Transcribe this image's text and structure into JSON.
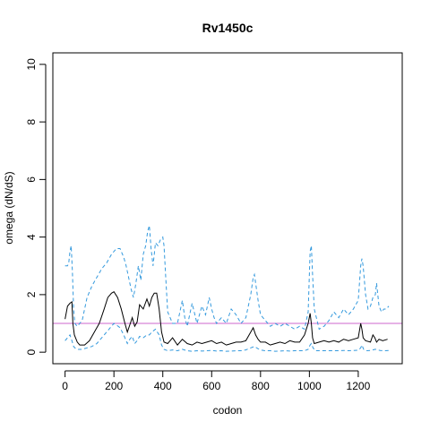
{
  "chart_data": {
    "type": "line",
    "title": "Rv1450c",
    "xlabel": "codon",
    "ylabel": "omega (dN/dS)",
    "xlim": [
      -50,
      1380
    ],
    "ylim": [
      -0.4,
      10.4
    ],
    "xticks": [
      0,
      200,
      400,
      600,
      800,
      1000,
      1200
    ],
    "yticks": [
      0,
      2,
      4,
      6,
      8,
      10
    ],
    "grid": false,
    "reference_line": {
      "y": 1,
      "color": "#cc66cc"
    },
    "series": [
      {
        "style": "solid",
        "color": "#000000",
        "x": [
          0,
          10,
          20,
          28,
          32,
          38,
          50,
          60,
          80,
          100,
          120,
          140,
          160,
          175,
          190,
          200,
          215,
          230,
          245,
          255,
          265,
          275,
          285,
          295,
          305,
          320,
          335,
          345,
          355,
          365,
          375,
          385,
          395,
          405,
          420,
          440,
          460,
          480,
          500,
          520,
          540,
          560,
          580,
          600,
          620,
          640,
          660,
          680,
          700,
          720,
          740,
          760,
          770,
          780,
          790,
          800,
          820,
          840,
          860,
          880,
          900,
          920,
          940,
          960,
          980,
          995,
          1003,
          1008,
          1013,
          1020,
          1040,
          1060,
          1080,
          1100,
          1120,
          1140,
          1160,
          1180,
          1200,
          1210,
          1215,
          1220,
          1230,
          1250,
          1260,
          1268,
          1275,
          1285,
          1300,
          1320
        ],
        "values": [
          1.15,
          1.6,
          1.7,
          1.75,
          1.0,
          0.6,
          0.35,
          0.25,
          0.25,
          0.4,
          0.7,
          1.0,
          1.5,
          1.9,
          2.05,
          2.1,
          1.9,
          1.5,
          1.0,
          0.7,
          0.95,
          1.2,
          0.9,
          1.05,
          1.65,
          1.5,
          1.85,
          1.6,
          1.9,
          2.05,
          2.05,
          1.5,
          0.7,
          0.35,
          0.3,
          0.5,
          0.25,
          0.45,
          0.3,
          0.25,
          0.35,
          0.3,
          0.35,
          0.4,
          0.3,
          0.35,
          0.25,
          0.3,
          0.35,
          0.35,
          0.4,
          0.7,
          0.85,
          0.6,
          0.45,
          0.35,
          0.35,
          0.25,
          0.3,
          0.35,
          0.3,
          0.4,
          0.35,
          0.35,
          0.6,
          1.0,
          1.35,
          1.0,
          0.5,
          0.3,
          0.35,
          0.4,
          0.35,
          0.4,
          0.35,
          0.45,
          0.4,
          0.45,
          0.5,
          1.0,
          0.8,
          0.5,
          0.4,
          0.35,
          0.6,
          0.5,
          0.35,
          0.45,
          0.4,
          0.45
        ]
      },
      {
        "style": "dashed",
        "color": "#3399dd",
        "x": [
          0,
          10,
          15,
          20,
          25,
          30,
          35,
          40,
          50,
          70,
          90,
          110,
          130,
          150,
          170,
          190,
          210,
          225,
          240,
          250,
          260,
          270,
          280,
          290,
          300,
          310,
          320,
          330,
          338,
          345,
          352,
          360,
          370,
          380,
          390,
          400,
          405,
          412,
          420,
          440,
          460,
          480,
          490,
          500,
          520,
          540,
          560,
          575,
          590,
          600,
          610,
          620,
          640,
          660,
          680,
          700,
          720,
          740,
          760,
          770,
          775,
          780,
          790,
          800,
          820,
          840,
          860,
          880,
          900,
          920,
          940,
          960,
          980,
          995,
          1003,
          1008,
          1013,
          1020,
          1040,
          1060,
          1080,
          1100,
          1120,
          1140,
          1160,
          1180,
          1200,
          1210,
          1215,
          1220,
          1230,
          1240,
          1250,
          1260,
          1270,
          1275,
          1285,
          1295,
          1305,
          1315,
          1325
        ],
        "values": [
          3.0,
          3.0,
          3.1,
          3.5,
          3.7,
          2.8,
          1.5,
          1.0,
          0.9,
          1.1,
          1.9,
          2.3,
          2.6,
          2.9,
          3.1,
          3.4,
          3.6,
          3.6,
          3.3,
          3.0,
          2.6,
          2.2,
          1.9,
          2.4,
          3.0,
          2.5,
          3.4,
          3.7,
          4.2,
          4.4,
          3.6,
          3.0,
          3.8,
          3.7,
          3.9,
          4.0,
          3.7,
          2.6,
          1.4,
          1.0,
          1.0,
          1.8,
          1.2,
          0.9,
          1.7,
          1.0,
          1.6,
          1.3,
          1.9,
          1.5,
          1.2,
          1.0,
          1.2,
          1.0,
          1.5,
          1.3,
          1.0,
          1.2,
          2.0,
          2.6,
          2.7,
          2.4,
          1.8,
          1.3,
          1.1,
          0.9,
          1.0,
          0.9,
          1.0,
          0.9,
          0.8,
          0.9,
          0.8,
          1.4,
          3.5,
          3.7,
          2.7,
          1.5,
          0.8,
          0.9,
          1.1,
          1.4,
          1.2,
          1.5,
          1.3,
          1.5,
          1.8,
          3.0,
          3.25,
          3.0,
          2.0,
          1.5,
          1.6,
          1.9,
          2.0,
          2.4,
          1.6,
          1.4,
          1.5,
          1.5,
          1.6
        ]
      },
      {
        "style": "dashed",
        "color": "#3399dd",
        "x": [
          0,
          10,
          20,
          28,
          35,
          40,
          50,
          70,
          90,
          110,
          130,
          150,
          170,
          190,
          200,
          210,
          225,
          240,
          255,
          265,
          275,
          285,
          295,
          305,
          320,
          335,
          345,
          355,
          370,
          385,
          395,
          405,
          420,
          440,
          460,
          480,
          500,
          520,
          540,
          560,
          580,
          600,
          620,
          640,
          660,
          680,
          700,
          720,
          740,
          760,
          775,
          790,
          805,
          820,
          840,
          860,
          880,
          900,
          920,
          940,
          960,
          980,
          995,
          1003,
          1008,
          1015,
          1025,
          1040,
          1060,
          1080,
          1100,
          1120,
          1140,
          1160,
          1180,
          1200,
          1210,
          1215,
          1222,
          1235,
          1250,
          1270,
          1290,
          1310,
          1325
        ],
        "values": [
          0.4,
          0.5,
          0.6,
          0.4,
          0.2,
          0.15,
          0.1,
          0.1,
          0.15,
          0.2,
          0.3,
          0.5,
          0.7,
          0.9,
          1.0,
          0.95,
          0.85,
          0.6,
          0.3,
          0.45,
          0.55,
          0.3,
          0.4,
          0.55,
          0.5,
          0.6,
          0.6,
          0.7,
          0.8,
          0.6,
          0.25,
          0.1,
          0.05,
          0.08,
          0.05,
          0.1,
          0.05,
          0.03,
          0.05,
          0.04,
          0.05,
          0.06,
          0.04,
          0.05,
          0.03,
          0.04,
          0.05,
          0.05,
          0.08,
          0.15,
          0.2,
          0.12,
          0.07,
          0.05,
          0.05,
          0.03,
          0.04,
          0.05,
          0.04,
          0.05,
          0.05,
          0.05,
          0.1,
          0.25,
          0.3,
          0.15,
          0.05,
          0.05,
          0.05,
          0.05,
          0.05,
          0.05,
          0.06,
          0.05,
          0.06,
          0.07,
          0.15,
          0.25,
          0.1,
          0.05,
          0.06,
          0.1,
          0.06,
          0.05,
          0.06
        ]
      }
    ]
  }
}
